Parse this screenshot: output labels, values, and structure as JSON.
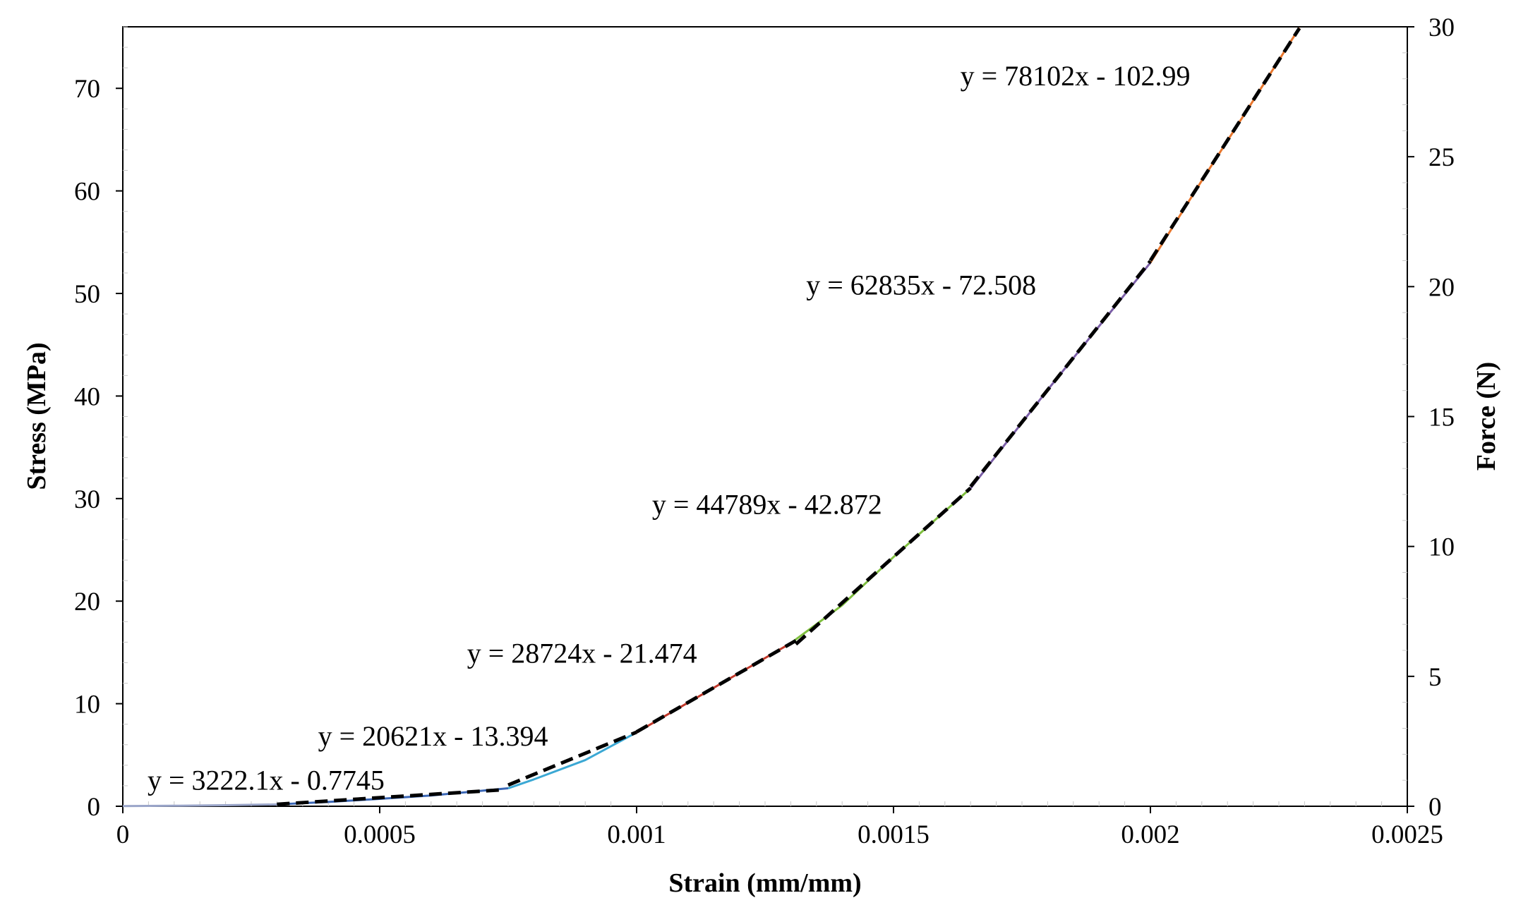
{
  "chart_data": {
    "type": "line",
    "xlabel": "Strain (mm/mm)",
    "ylabel": "Stress (MPa)",
    "y2label": "Force (N)",
    "xlim": [
      0,
      0.0025
    ],
    "ylim": [
      0,
      76
    ],
    "y2lim": [
      0,
      30
    ],
    "x_ticks": [
      0,
      0.0005,
      0.001,
      0.0015,
      0.002,
      0.0025
    ],
    "x_tick_labels": [
      "0",
      "0.0005",
      "0.001",
      "0.0015",
      "0.002",
      "0.0025"
    ],
    "y_ticks": [
      0,
      10,
      20,
      30,
      40,
      50,
      60,
      70
    ],
    "y_tick_labels": [
      "0",
      "10",
      "20",
      "30",
      "40",
      "50",
      "60",
      "70"
    ],
    "y2_ticks": [
      0,
      5,
      10,
      15,
      20,
      25,
      30
    ],
    "y2_tick_labels": [
      "0",
      "5",
      "10",
      "15",
      "20",
      "25",
      "30"
    ],
    "grid": false,
    "legend": "none",
    "series": [
      {
        "color": "#9aa5c9",
        "x": [
          0,
          0.0001,
          0.0002,
          0.0003
        ],
        "y": [
          0.02,
          0.05,
          0.1,
          0.18
        ]
      },
      {
        "color": "#3a66b5",
        "x": [
          0.0003,
          0.0004,
          0.0005,
          0.0006,
          0.00075
        ],
        "y": [
          0.18,
          0.42,
          0.72,
          1.05,
          1.75
        ]
      },
      {
        "color": "#3ba8d4",
        "x": [
          0.00075,
          0.0008,
          0.0009,
          0.001
        ],
        "y": [
          1.75,
          2.62,
          4.5,
          7.2
        ]
      },
      {
        "color": "#c0392b",
        "x": [
          0.001,
          0.0011,
          0.0012,
          0.0013
        ],
        "y": [
          7.2,
          10.1,
          13.0,
          15.9
        ]
      },
      {
        "color": "#7fbf3f",
        "x": [
          0.0013,
          0.0014,
          0.0015,
          0.00165
        ],
        "y": [
          15.9,
          19.6,
          24.3,
          31.0
        ]
      },
      {
        "color": "#7b5ea7",
        "x": [
          0.00165,
          0.0018,
          0.0019,
          0.002
        ],
        "y": [
          31.0,
          40.6,
          46.8,
          53.0
        ]
      },
      {
        "color": "#e8772e",
        "x": [
          0.002,
          0.0021,
          0.0022,
          0.00229
        ],
        "y": [
          53.0,
          61.0,
          68.8,
          75.9
        ]
      }
    ],
    "trendlines": [
      {
        "equation": "y = 3222.1x - 0.7745",
        "slope": 3222.1,
        "intercept": -0.7745,
        "xrange": [
          0.0003,
          0.00074
        ]
      },
      {
        "equation": "y = 20621x - 13.394",
        "slope": 20621,
        "intercept": -13.394,
        "xrange": [
          0.00075,
          0.001
        ]
      },
      {
        "equation": "y = 28724x - 21.474",
        "slope": 28724,
        "intercept": -21.474,
        "xrange": [
          0.001,
          0.00131
        ]
      },
      {
        "equation": "y = 44789x - 42.872",
        "slope": 44789,
        "intercept": -42.872,
        "xrange": [
          0.00131,
          0.00165
        ]
      },
      {
        "equation": "y = 62835x - 72.508",
        "slope": 62835,
        "intercept": -72.508,
        "xrange": [
          0.00165,
          0.002
        ]
      },
      {
        "equation": "y = 78102x - 102.99",
        "slope": 78102,
        "intercept": -102.99,
        "xrange": [
          0.002,
          0.00229
        ]
      }
    ],
    "annotations": [
      {
        "text": "y = 3222.1x - 0.7745",
        "x": 4.8e-05,
        "y": 1.6
      },
      {
        "text": "y = 20621x - 13.394",
        "x": 0.00038,
        "y": 5.9
      },
      {
        "text": "y = 28724x - 21.474",
        "x": 0.00067,
        "y": 14.0
      },
      {
        "text": "y = 44789x - 42.872",
        "x": 0.00103,
        "y": 28.5
      },
      {
        "text": "y = 62835x - 72.508",
        "x": 0.00133,
        "y": 49.9
      },
      {
        "text": "y = 78102x - 102.99",
        "x": 0.00163,
        "y": 70.3
      }
    ]
  }
}
